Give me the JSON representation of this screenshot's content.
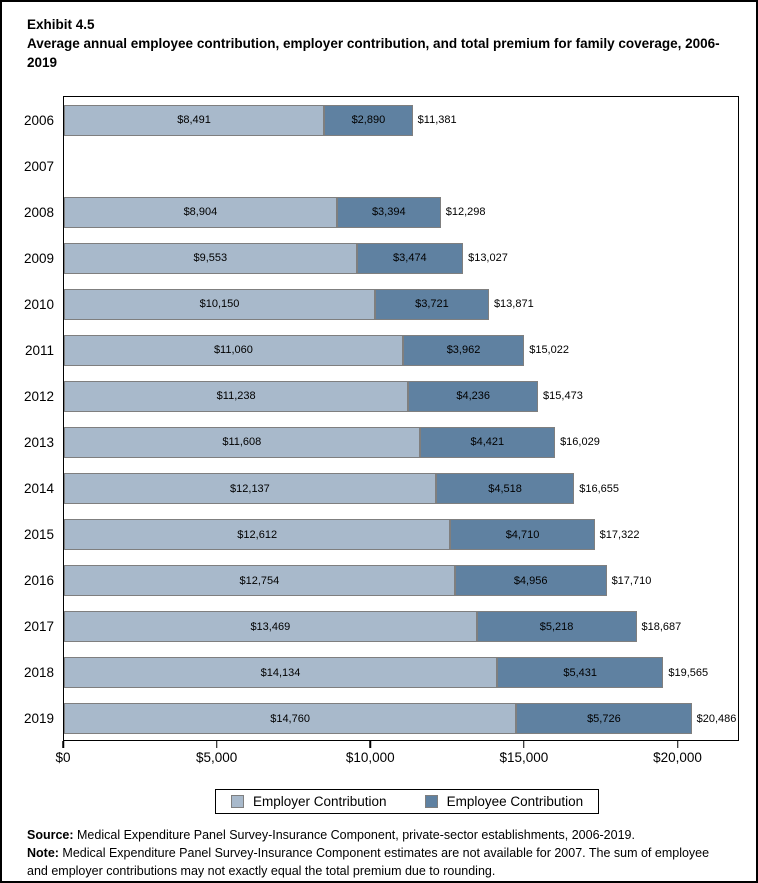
{
  "title": {
    "exhibit": "Exhibit 4.5",
    "text": "Average annual employee contribution, employer contribution, and total premium for family coverage, 2006-2019"
  },
  "chart_data": {
    "type": "bar",
    "orientation": "horizontal",
    "stacked": true,
    "grid": false,
    "categories": [
      "2006",
      "2007",
      "2008",
      "2009",
      "2010",
      "2011",
      "2012",
      "2013",
      "2014",
      "2015",
      "2016",
      "2017",
      "2018",
      "2019"
    ],
    "series": [
      {
        "name": "Employer Contribution",
        "color": "#A8B9CB",
        "values": [
          8491,
          null,
          8904,
          9553,
          10150,
          11060,
          11238,
          11608,
          12137,
          12612,
          12754,
          13469,
          14134,
          14760
        ]
      },
      {
        "name": "Employee Contribution",
        "color": "#5F81A1",
        "values": [
          2890,
          null,
          3394,
          3474,
          3721,
          3962,
          4236,
          4421,
          4518,
          4710,
          4956,
          5218,
          5431,
          5726
        ]
      }
    ],
    "totals": [
      11381,
      null,
      12298,
      13027,
      13871,
      15022,
      15473,
      16029,
      16655,
      17322,
      17710,
      18687,
      19565,
      20486
    ],
    "xlabel": "",
    "ylabel": "",
    "xlim": [
      0,
      22000
    ],
    "x_ticks": [
      0,
      5000,
      10000,
      15000,
      20000
    ],
    "x_tick_labels": [
      "$0",
      "$5,000",
      "$10,000",
      "$15,000",
      "$20,000"
    ],
    "value_prefix": "$",
    "note_missing_year": "2007",
    "legend_position": "bottom"
  },
  "legend": {
    "items": [
      {
        "label": "Employer Contribution",
        "color": "#A8B9CB"
      },
      {
        "label": "Employee Contribution",
        "color": "#5F81A1"
      }
    ]
  },
  "footer": {
    "source_label": "Source:",
    "source_text": " Medical Expenditure Panel Survey-Insurance Component, private-sector establishments, 2006-2019.",
    "note_label": "Note:",
    "note_text": " Medical Expenditure Panel Survey-Insurance Component estimates are not available for 2007. The sum of employee and employer contributions may not exactly equal the total premium due to rounding."
  },
  "colors": {
    "bar_border": "#7f7f7f",
    "plot_border": "#000000",
    "text": "#000000"
  }
}
